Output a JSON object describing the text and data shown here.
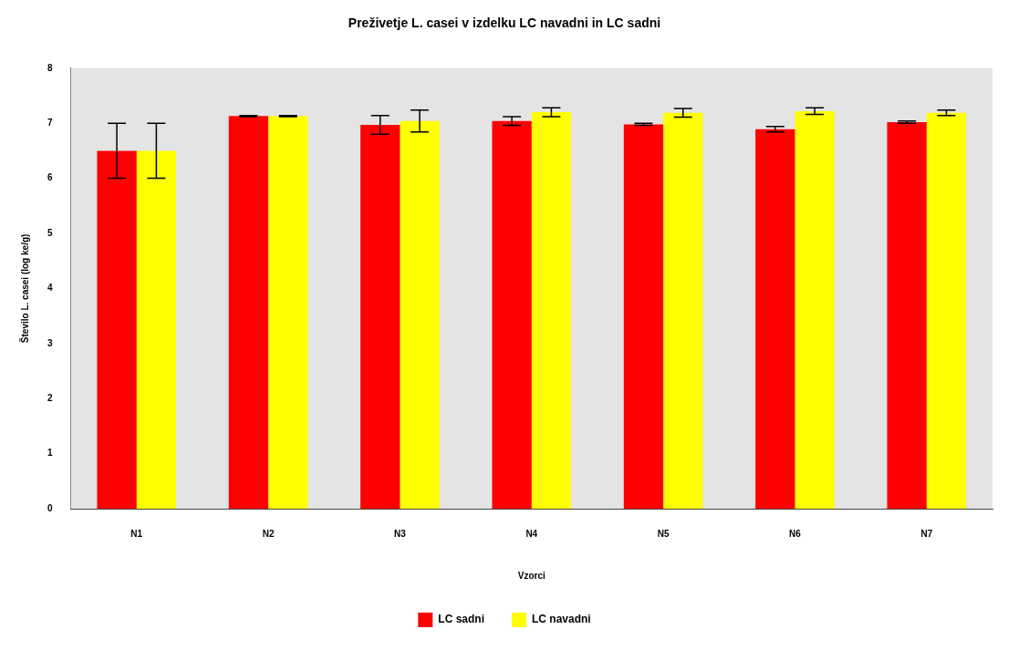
{
  "chart_data": {
    "type": "bar",
    "title": "Preživetje L. casei v izdelku LC navadni in LC sadni",
    "xlabel": "Vzorci",
    "ylabel": "Število L. casei (log ke/g)",
    "categories": [
      "N1",
      "N2",
      "N3",
      "N4",
      "N5",
      "N6",
      "N7"
    ],
    "series": [
      {
        "name": "LC sadni",
        "color": "#ff0000",
        "values": [
          6.5,
          7.13,
          6.97,
          7.04,
          6.98,
          6.89,
          7.02
        ],
        "errors": [
          0.5,
          0.01,
          0.17,
          0.08,
          0.02,
          0.05,
          0.02
        ]
      },
      {
        "name": "LC navadni",
        "color": "#ffff00",
        "values": [
          6.5,
          7.13,
          7.04,
          7.2,
          7.19,
          7.22,
          7.19
        ],
        "errors": [
          0.5,
          0.01,
          0.2,
          0.08,
          0.08,
          0.06,
          0.05
        ]
      }
    ],
    "ylim": [
      0,
      8
    ],
    "yticks": [
      0,
      1,
      2,
      3,
      4,
      5,
      6,
      7,
      8
    ],
    "grid": false,
    "legend": "bottom"
  }
}
